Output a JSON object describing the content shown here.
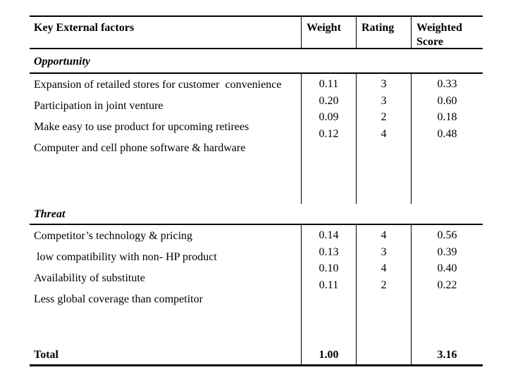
{
  "page": {
    "background_color": "#ffffff",
    "text_color": "#000000",
    "border_color": "#000000"
  },
  "table": {
    "header": {
      "factors": "Key External factors",
      "weight": "Weight",
      "rating": "Rating",
      "weighted_score": "Weighted Score"
    },
    "sections": {
      "opportunity": {
        "label": "Opportunity",
        "factors": [
          "Expansion of retailed stores for customer  convenience",
          "Participation in joint venture",
          "Make easy to use product for upcoming retirees",
          "Computer and cell phone software & hardware"
        ],
        "weights": [
          "0.11",
          "0.20",
          "0.09",
          "0.12"
        ],
        "ratings": [
          "3",
          "3",
          "2",
          "4"
        ],
        "scores": [
          "0.33",
          "0.60",
          "0.18",
          "0.48"
        ]
      },
      "threat": {
        "label": "Threat",
        "factors": [
          "Competitor’s technology & pricing",
          " low compatibility with non- HP product",
          "Availability of substitute",
          "Less global coverage than competitor"
        ],
        "weights": [
          "0.14",
          "0.13",
          "0.10",
          "0.11"
        ],
        "ratings": [
          "4",
          "3",
          "4",
          "2"
        ],
        "scores": [
          "0.56",
          "0.39",
          "0.40",
          "0.22"
        ]
      }
    },
    "total": {
      "label": "Total",
      "weight": "1.00",
      "rating": "",
      "score": "3.16"
    }
  }
}
